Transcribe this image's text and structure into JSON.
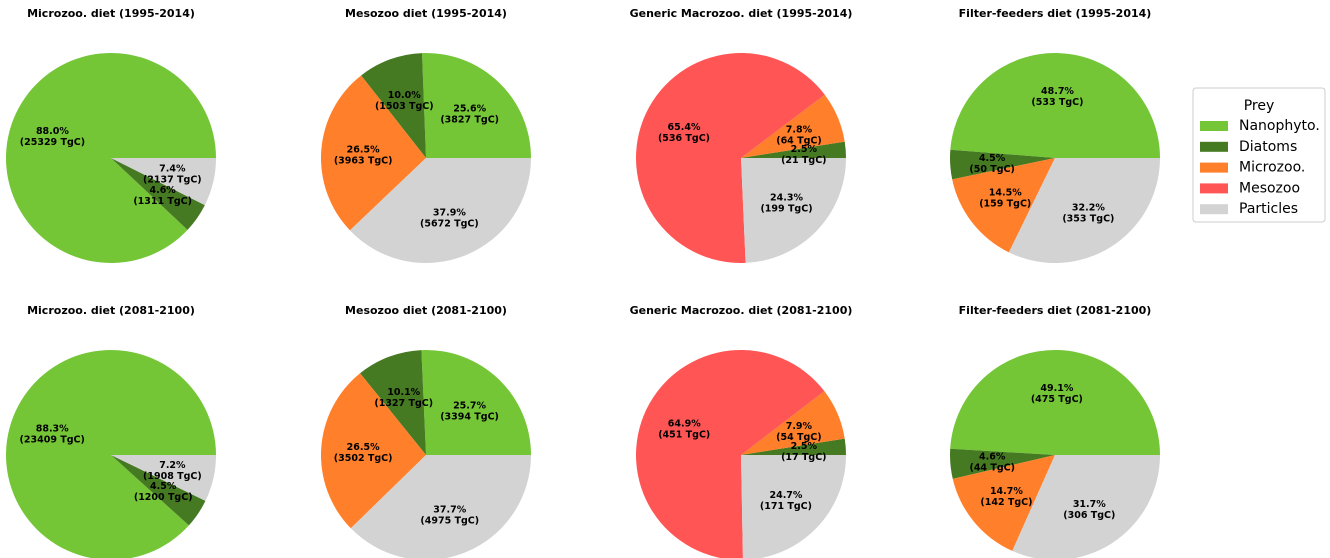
{
  "chart_data": [
    {
      "type": "pie",
      "title": "Microzoo. diet (1995-2014)",
      "categories": [
        "Nanophyto.",
        "Diatoms",
        "Particles"
      ],
      "values": [
        88.0,
        4.6,
        7.4
      ],
      "value_labels": [
        [
          "88.0%",
          "(25329 TgC)"
        ],
        [
          "4.6%",
          "(1311 TgC)"
        ],
        [
          "7.4%",
          "(2137 TgC)"
        ]
      ]
    },
    {
      "type": "pie",
      "title": "Mesozoo diet (1995-2014)",
      "categories": [
        "Nanophyto.",
        "Diatoms",
        "Microzoo.",
        "Particles"
      ],
      "values": [
        25.6,
        10.0,
        26.5,
        37.9
      ],
      "value_labels": [
        [
          "25.6%",
          "(3827 TgC)"
        ],
        [
          "10.0%",
          "(1503 TgC)"
        ],
        [
          "26.5%",
          "(3963 TgC)"
        ],
        [
          "37.9%",
          "(5672 TgC)"
        ]
      ]
    },
    {
      "type": "pie",
      "title": "Generic Macrozoo. diet (1995-2014)",
      "categories": [
        "Diatoms",
        "Microzoo.",
        "Mesozoo",
        "Particles"
      ],
      "values": [
        2.5,
        7.8,
        65.4,
        24.3
      ],
      "value_labels": [
        [
          "2.5%",
          "(21 TgC)"
        ],
        [
          "7.8%",
          "(64 TgC)"
        ],
        [
          "65.4%",
          "(536 TgC)"
        ],
        [
          "24.3%",
          "(199 TgC)"
        ]
      ]
    },
    {
      "type": "pie",
      "title": "Filter-feeders diet (1995-2014)",
      "categories": [
        "Nanophyto.",
        "Diatoms",
        "Microzoo.",
        "Particles"
      ],
      "values": [
        48.7,
        4.5,
        14.5,
        32.2
      ],
      "value_labels": [
        [
          "48.7%",
          "(533 TgC)"
        ],
        [
          "4.5%",
          "(50 TgC)"
        ],
        [
          "14.5%",
          "(159 TgC)"
        ],
        [
          "32.2%",
          "(353 TgC)"
        ]
      ]
    },
    {
      "type": "pie",
      "title": "Microzoo. diet (2081-2100)",
      "categories": [
        "Nanophyto.",
        "Diatoms",
        "Particles"
      ],
      "values": [
        88.3,
        4.5,
        7.2
      ],
      "value_labels": [
        [
          "88.3%",
          "(23409 TgC)"
        ],
        [
          "4.5%",
          "(1200 TgC)"
        ],
        [
          "7.2%",
          "(1908 TgC)"
        ]
      ]
    },
    {
      "type": "pie",
      "title": "Mesozoo diet (2081-2100)",
      "categories": [
        "Nanophyto.",
        "Diatoms",
        "Microzoo.",
        "Particles"
      ],
      "values": [
        25.7,
        10.1,
        26.5,
        37.7
      ],
      "value_labels": [
        [
          "25.7%",
          "(3394 TgC)"
        ],
        [
          "10.1%",
          "(1327 TgC)"
        ],
        [
          "26.5%",
          "(3502 TgC)"
        ],
        [
          "37.7%",
          "(4975 TgC)"
        ]
      ]
    },
    {
      "type": "pie",
      "title": "Generic Macrozoo. diet (2081-2100)",
      "categories": [
        "Diatoms",
        "Microzoo.",
        "Mesozoo",
        "Particles"
      ],
      "values": [
        2.5,
        7.9,
        64.9,
        24.7
      ],
      "value_labels": [
        [
          "2.5%",
          "(17 TgC)"
        ],
        [
          "7.9%",
          "(54 TgC)"
        ],
        [
          "64.9%",
          "(451 TgC)"
        ],
        [
          "24.7%",
          "(171 TgC)"
        ]
      ]
    },
    {
      "type": "pie",
      "title": "Filter-feeders diet (2081-2100)",
      "categories": [
        "Nanophyto.",
        "Diatoms",
        "Microzoo.",
        "Particles"
      ],
      "values": [
        49.1,
        4.6,
        14.7,
        31.7
      ],
      "value_labels": [
        [
          "49.1%",
          "(475 TgC)"
        ],
        [
          "4.6%",
          "(44 TgC)"
        ],
        [
          "14.7%",
          "(142 TgC)"
        ],
        [
          "31.7%",
          "(306 TgC)"
        ]
      ]
    }
  ],
  "legend": {
    "title": "Prey",
    "items": [
      {
        "name": "Nanophyto.",
        "color": "#74c637"
      },
      {
        "name": "Diatoms",
        "color": "#467a22"
      },
      {
        "name": "Microzoo.",
        "color": "#ff7f2a"
      },
      {
        "name": "Mesozoo",
        "color": "#ff5555"
      },
      {
        "name": "Particles",
        "color": "#d3d3d3"
      }
    ]
  }
}
